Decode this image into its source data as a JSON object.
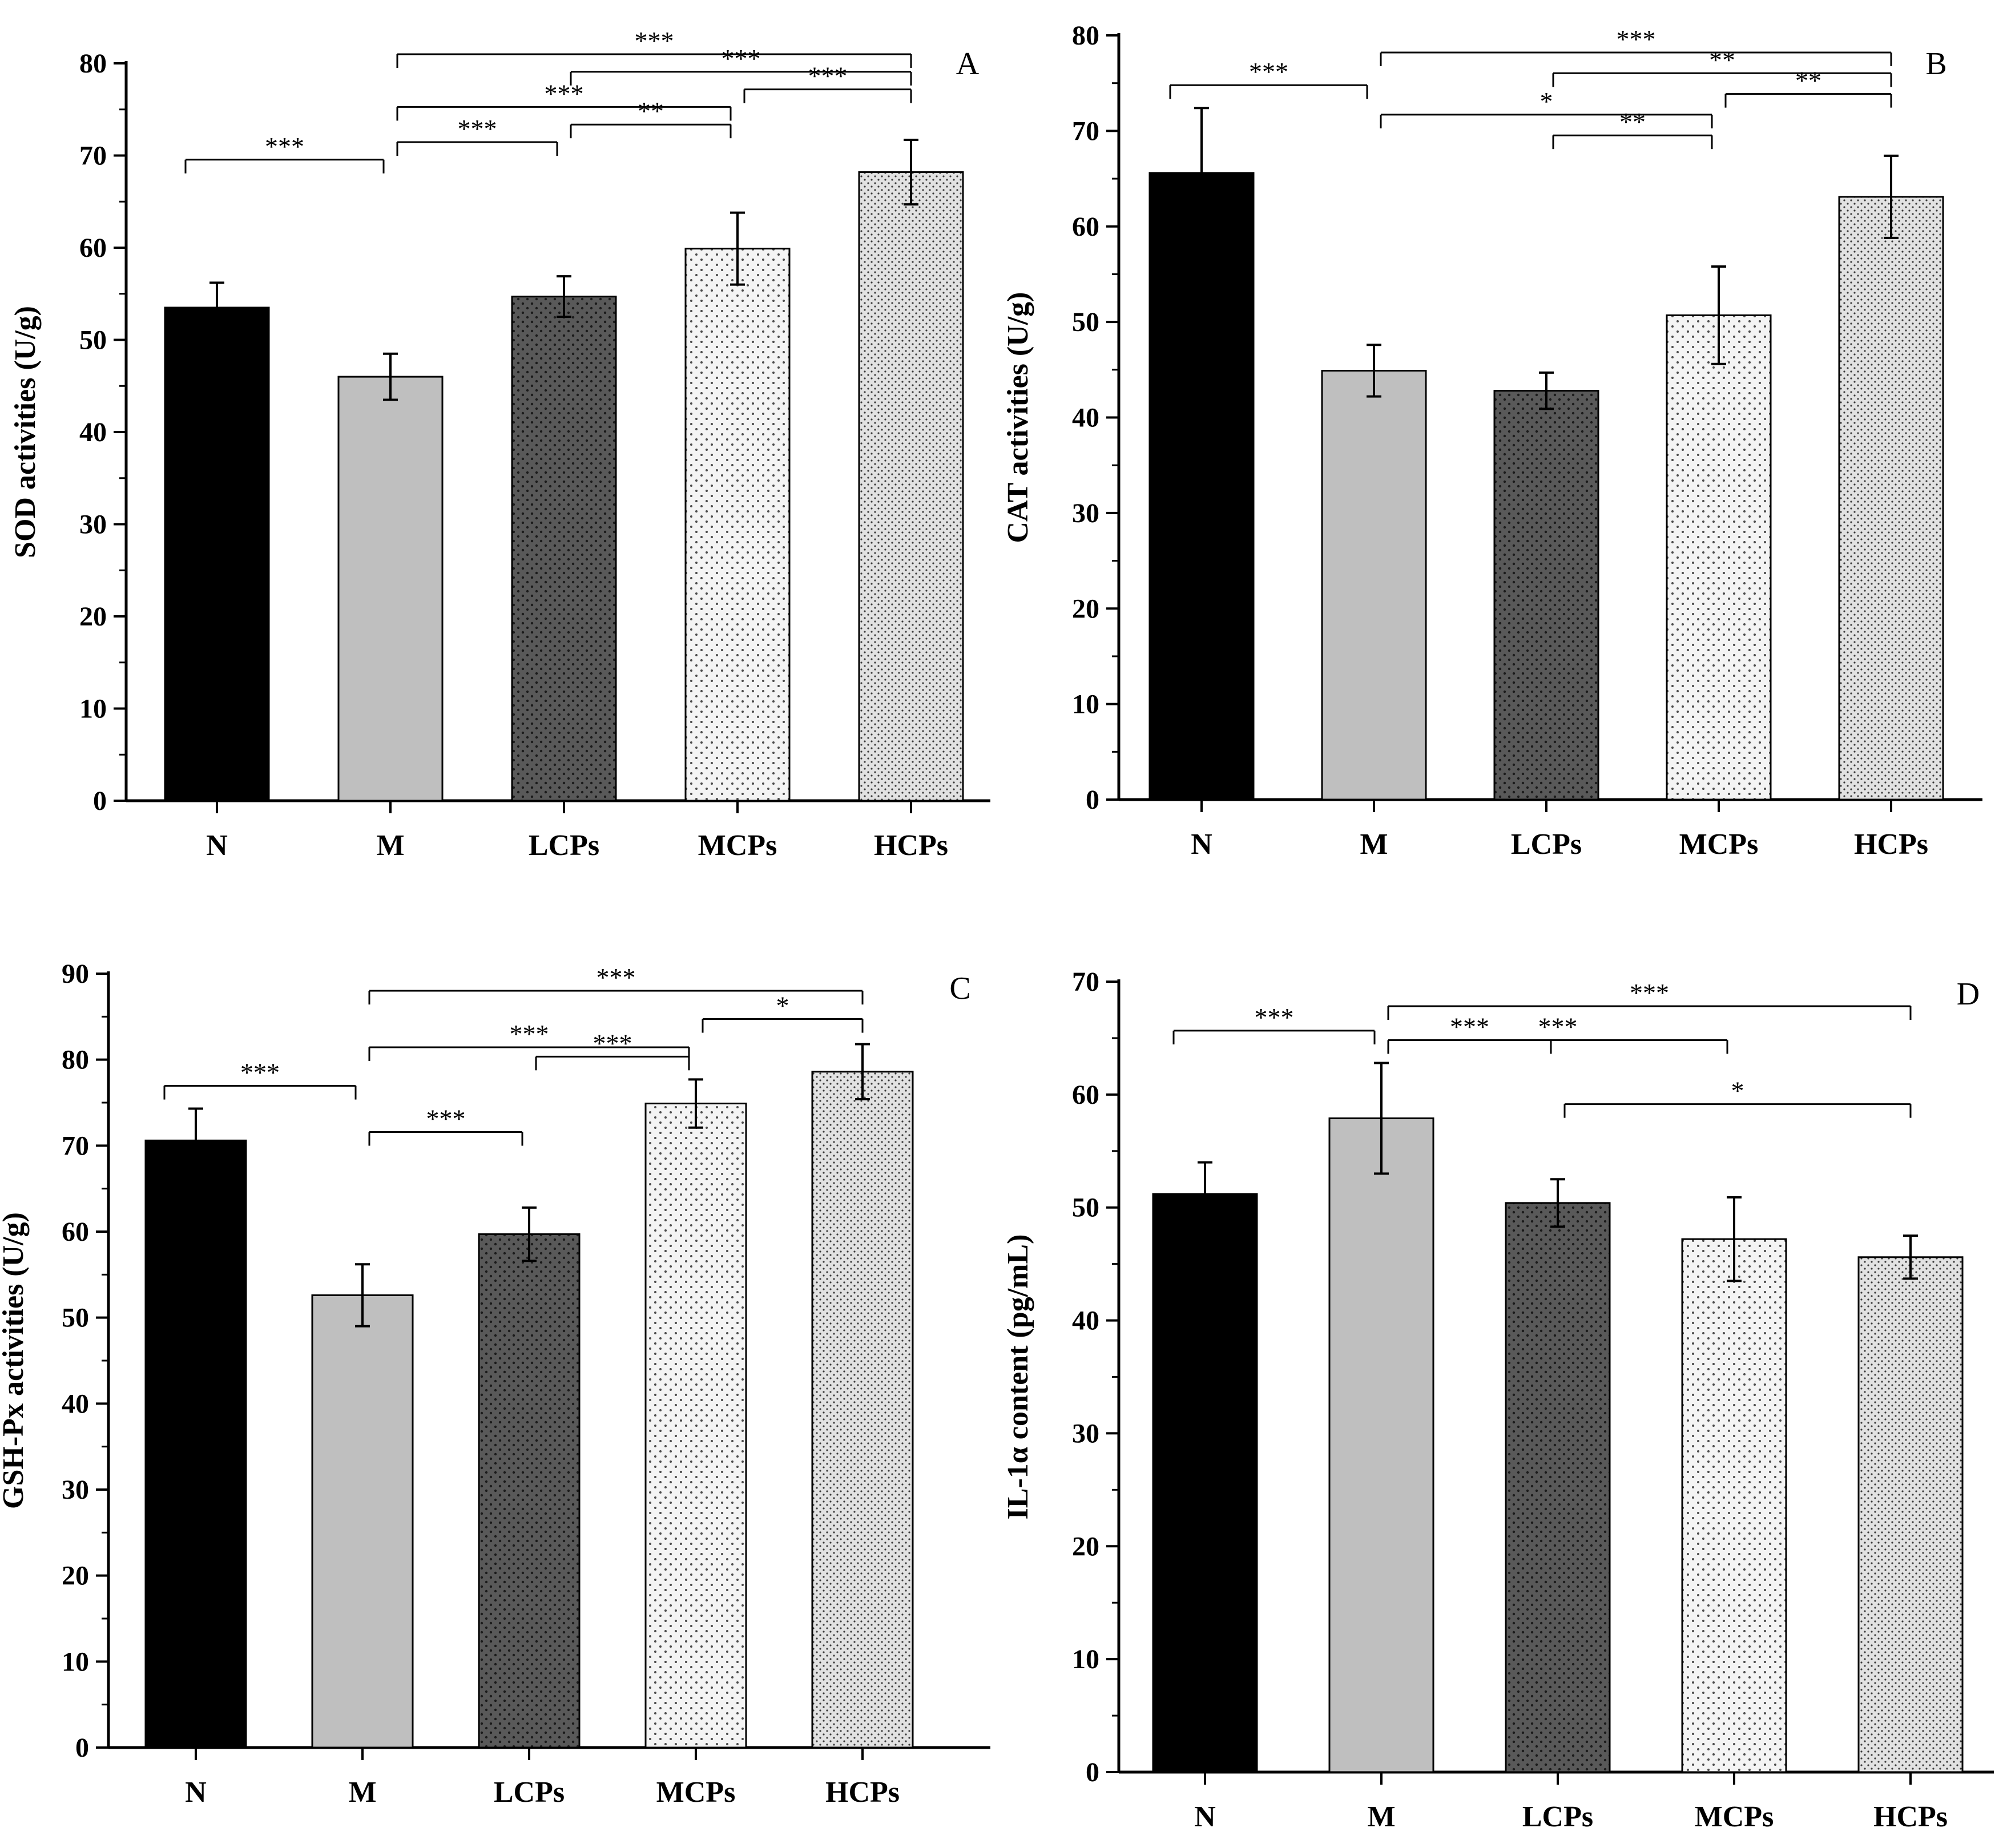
{
  "chart_data": [
    {
      "type": "bar",
      "panel_label": "A",
      "ylabel": "SOD activities (U/g)",
      "ylim": [
        0,
        80
      ],
      "yticks": [
        0,
        10,
        20,
        30,
        40,
        50,
        60,
        70,
        80
      ],
      "categories": [
        "N",
        "M",
        "LCPs",
        "MCPs",
        "HCPs"
      ],
      "values": [
        53.5,
        46.0,
        54.7,
        59.9,
        68.2
      ],
      "errors": [
        2.7,
        2.5,
        2.2,
        3.9,
        3.5
      ],
      "significance": [
        {
          "from": 0,
          "to": 1,
          "label": "***"
        },
        {
          "from": 1,
          "to": 2,
          "label": "***"
        },
        {
          "from": 2,
          "to": 3,
          "label": "**"
        },
        {
          "from": 1,
          "to": 3,
          "label": "***"
        },
        {
          "from": 3,
          "to": 4,
          "label": "***"
        },
        {
          "from": 2,
          "to": 4,
          "label": "***"
        },
        {
          "from": 1,
          "to": 4,
          "label": "***"
        }
      ]
    },
    {
      "type": "bar",
      "panel_label": "B",
      "ylabel": "CAT activities (U/g)",
      "ylim": [
        0,
        80
      ],
      "yticks": [
        0,
        10,
        20,
        30,
        40,
        50,
        60,
        70,
        80
      ],
      "categories": [
        "N",
        "M",
        "LCPs",
        "MCPs",
        "HCPs"
      ],
      "values": [
        65.6,
        44.9,
        42.8,
        50.7,
        63.1
      ],
      "errors": [
        6.8,
        2.7,
        1.9,
        5.1,
        4.3
      ],
      "significance": [
        {
          "from": 0,
          "to": 1,
          "label": "***"
        },
        {
          "from": 2,
          "to": 3,
          "label": "**"
        },
        {
          "from": 1,
          "to": 3,
          "label": "*"
        },
        {
          "from": 3,
          "to": 4,
          "label": "**"
        },
        {
          "from": 2,
          "to": 4,
          "label": "**"
        },
        {
          "from": 1,
          "to": 4,
          "label": "***"
        }
      ]
    },
    {
      "type": "bar",
      "panel_label": "C",
      "ylabel": "GSH-Px activities (U/g)",
      "ylim": [
        0,
        90
      ],
      "yticks": [
        0,
        10,
        20,
        30,
        40,
        50,
        60,
        70,
        80,
        90
      ],
      "categories": [
        "N",
        "M",
        "LCPs",
        "MCPs",
        "HCPs"
      ],
      "values": [
        70.6,
        52.6,
        59.7,
        74.9,
        78.6
      ],
      "errors": [
        3.7,
        3.6,
        3.1,
        2.8,
        3.2
      ],
      "significance": [
        {
          "from": 1,
          "to": 2,
          "label": "***"
        },
        {
          "from": 0,
          "to": 1,
          "label": "***"
        },
        {
          "from": 2,
          "to": 3,
          "label": "***"
        },
        {
          "from": 1,
          "to": 3,
          "label": "***"
        },
        {
          "from": 3,
          "to": 4,
          "label": "*"
        },
        {
          "from": 1,
          "to": 4,
          "label": "***"
        }
      ]
    },
    {
      "type": "bar",
      "panel_label": "D",
      "ylabel": "IL-1α content (pg/mL)",
      "ylim": [
        0,
        70
      ],
      "yticks": [
        0,
        10,
        20,
        30,
        40,
        50,
        60,
        70
      ],
      "categories": [
        "N",
        "M",
        "LCPs",
        "MCPs",
        "HCPs"
      ],
      "values": [
        51.2,
        57.9,
        50.4,
        47.2,
        45.6
      ],
      "errors": [
        2.8,
        4.9,
        2.1,
        3.7,
        1.9
      ],
      "significance": [
        {
          "from": 2,
          "to": 4,
          "label": "*"
        },
        {
          "from": 1,
          "to": 2,
          "label": "***"
        },
        {
          "from": 1,
          "to": 3,
          "label": "***"
        },
        {
          "from": 0,
          "to": 1,
          "label": "***"
        },
        {
          "from": 1,
          "to": 4,
          "label": "***"
        }
      ]
    }
  ],
  "styles": {
    "bar_fills": [
      "#000000",
      "#bfbfbf",
      "#595959",
      "#f4f4f4",
      "#e2e2e2"
    ],
    "dot_colors": [
      null,
      null,
      "#1a1a1a",
      "#4a4a4a",
      "#3a3a3a"
    ],
    "outline": "#000000"
  }
}
